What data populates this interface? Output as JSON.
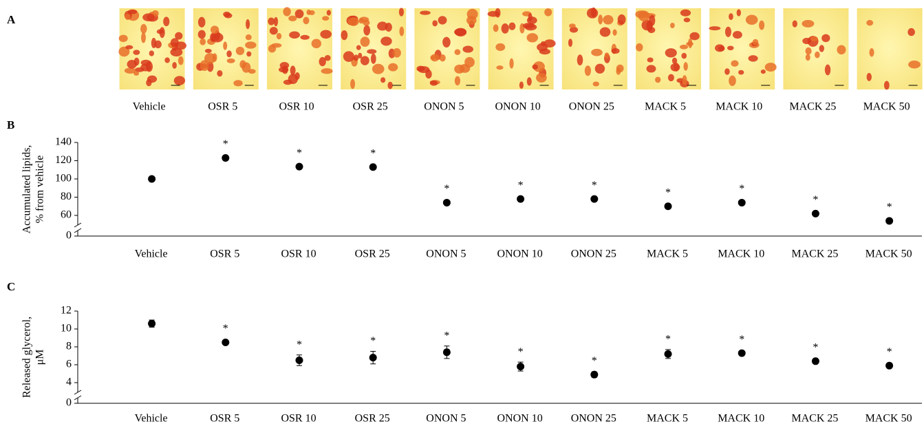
{
  "panel_a": {
    "panel_label": "A",
    "captions": [
      "Vehicle",
      "OSR 5",
      "OSR 10",
      "OSR 25",
      "ONON 5",
      "ONON 10",
      "ONON 25",
      "MACK 5",
      "MACK 10",
      "MACK 25",
      "MACK 50"
    ]
  },
  "chart_data": [
    {
      "type": "scatter",
      "panel_label": "B",
      "ylabel": [
        "Accumulated lipids,",
        "% from vehicle"
      ],
      "categories": [
        "Vehicle",
        "OSR 5",
        "OSR 10",
        "OSR 25",
        "ONON 5",
        "ONON 10",
        "ONON 25",
        "MACK 5",
        "MACK 10",
        "MACK 25",
        "MACK 50"
      ],
      "values": [
        100,
        123,
        113.5,
        113,
        74,
        78,
        78,
        70,
        74,
        62,
        54
      ],
      "significance": [
        null,
        "*",
        "*",
        "*",
        "*",
        "*",
        "*",
        "*",
        "*",
        "*",
        "*"
      ],
      "color": "#000000",
      "ylim": [
        0,
        140
      ],
      "yticks": [
        0,
        60,
        80,
        100,
        120,
        140
      ],
      "axis_break": true
    },
    {
      "type": "scatter",
      "panel_label": "C",
      "ylabel": [
        "Released glycerol,",
        "μM"
      ],
      "categories": [
        "Vehicle",
        "OSR 5",
        "OSR 10",
        "OSR 25",
        "ONON 5",
        "ONON 10",
        "ONON 25",
        "MACK 5",
        "MACK 10",
        "MACK 25",
        "MACK 50"
      ],
      "values": [
        10.6,
        8.5,
        6.5,
        6.8,
        7.4,
        5.8,
        4.9,
        7.2,
        7.3,
        6.4,
        5.9
      ],
      "errors": [
        0.4,
        0.15,
        0.6,
        0.7,
        0.7,
        0.5,
        0.3,
        0.5,
        0.15,
        0.15,
        0.15
      ],
      "significance": [
        null,
        "*",
        "*",
        "*",
        "*",
        "*",
        "*",
        "*",
        "*",
        "*",
        "*"
      ],
      "color": "#000000",
      "ylim": [
        0,
        12
      ],
      "yticks": [
        0,
        4,
        6,
        8,
        10,
        12
      ],
      "axis_break": true
    }
  ]
}
